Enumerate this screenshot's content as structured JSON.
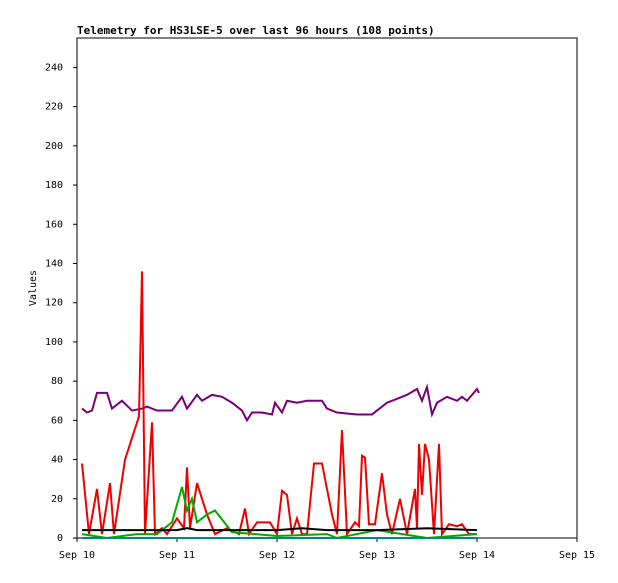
{
  "chart_data": {
    "type": "line",
    "title": "Telemetry for HS3LSE-5 over last 96 hours (108 points)",
    "y_label": "Values",
    "xlim": [
      0,
      5
    ],
    "xticks": [
      {
        "value": 0,
        "label": "Sep 10"
      },
      {
        "value": 1,
        "label": "Sep 11"
      },
      {
        "value": 2,
        "label": "Sep 12"
      },
      {
        "value": 3,
        "label": "Sep 13"
      },
      {
        "value": 4,
        "label": "Sep 14"
      },
      {
        "value": 5,
        "label": "Sep 15"
      }
    ],
    "ylim": [
      0,
      255
    ],
    "yticks": [
      0,
      20,
      40,
      60,
      80,
      100,
      120,
      140,
      160,
      180,
      200,
      220,
      240
    ],
    "grid": false,
    "series": [
      {
        "color": "#770077",
        "x": [
          0.05,
          0.1,
          0.15,
          0.2,
          0.3,
          0.35,
          0.45,
          0.55,
          0.65,
          0.7,
          0.8,
          0.95,
          1.05,
          1.1,
          1.2,
          1.25,
          1.35,
          1.45,
          1.55,
          1.65,
          1.7,
          1.75,
          1.85,
          1.95,
          1.98,
          2.05,
          2.1,
          2.2,
          2.3,
          2.45,
          2.5,
          2.6,
          2.8,
          2.95,
          3.1,
          3.2,
          3.3,
          3.4,
          3.45,
          3.5,
          3.55,
          3.6,
          3.7,
          3.8,
          3.85,
          3.9,
          4.0,
          4.02
        ],
        "values": [
          66,
          64,
          65,
          74,
          74,
          66,
          70,
          65,
          66,
          67,
          65,
          65,
          72,
          66,
          73,
          70,
          73,
          72,
          69,
          65,
          60,
          64,
          64,
          63,
          69,
          64,
          70,
          69,
          70,
          70,
          66,
          64,
          63,
          63,
          69,
          71,
          73,
          76,
          70,
          77,
          63,
          69,
          72,
          70,
          72,
          70,
          76,
          74
        ]
      },
      {
        "color": "#ee0000",
        "x": [
          0.05,
          0.12,
          0.2,
          0.25,
          0.33,
          0.37,
          0.48,
          0.62,
          0.65,
          0.68,
          0.75,
          0.78,
          0.85,
          0.9,
          1.0,
          1.07,
          1.1,
          1.13,
          1.2,
          1.3,
          1.38,
          1.5,
          1.62,
          1.68,
          1.72,
          1.8,
          1.93,
          2.0,
          2.05,
          2.1,
          2.15,
          2.2,
          2.25,
          2.3,
          2.37,
          2.45,
          2.55,
          2.6,
          2.65,
          2.7,
          2.78,
          2.82,
          2.85,
          2.88,
          2.92,
          2.98,
          3.05,
          3.1,
          3.15,
          3.23,
          3.3,
          3.38,
          3.4,
          3.42,
          3.45,
          3.48,
          3.52,
          3.57,
          3.62,
          3.65,
          3.72,
          3.8,
          3.85,
          3.92,
          4.0
        ],
        "values": [
          38,
          2,
          25,
          2,
          28,
          2,
          40,
          62,
          136,
          2,
          59,
          2,
          5,
          2,
          10,
          5,
          36,
          5,
          28,
          12,
          2,
          5,
          2,
          15,
          2,
          8,
          8,
          2,
          24,
          22,
          2,
          10,
          2,
          2,
          38,
          38,
          12,
          2,
          55,
          2,
          8,
          6,
          42,
          41,
          7,
          7,
          33,
          12,
          2,
          20,
          2,
          25,
          5,
          48,
          22,
          48,
          40,
          2,
          48,
          2,
          7,
          6,
          7,
          2,
          2
        ]
      },
      {
        "color": "#00aa00",
        "x": [
          0.05,
          0.3,
          0.6,
          0.8,
          0.95,
          1.05,
          1.1,
          1.15,
          1.2,
          1.3,
          1.38,
          1.55,
          2.0,
          2.5,
          2.6,
          3.0,
          3.5,
          4.0
        ],
        "values": [
          2,
          0,
          2,
          2,
          8,
          26,
          14,
          20,
          8,
          12,
          14,
          3,
          1,
          2,
          0,
          4,
          0,
          2
        ]
      },
      {
        "color": "#000000",
        "x": [
          0.05,
          1.0,
          1.1,
          1.2,
          2.0,
          2.25,
          2.5,
          3.0,
          3.5,
          4.0
        ],
        "values": [
          4,
          4,
          5,
          4,
          4,
          5,
          4,
          4,
          5,
          4
        ]
      },
      {
        "color": "#008888",
        "x": [
          0.05,
          4.0
        ],
        "values": [
          0,
          0
        ]
      }
    ]
  }
}
